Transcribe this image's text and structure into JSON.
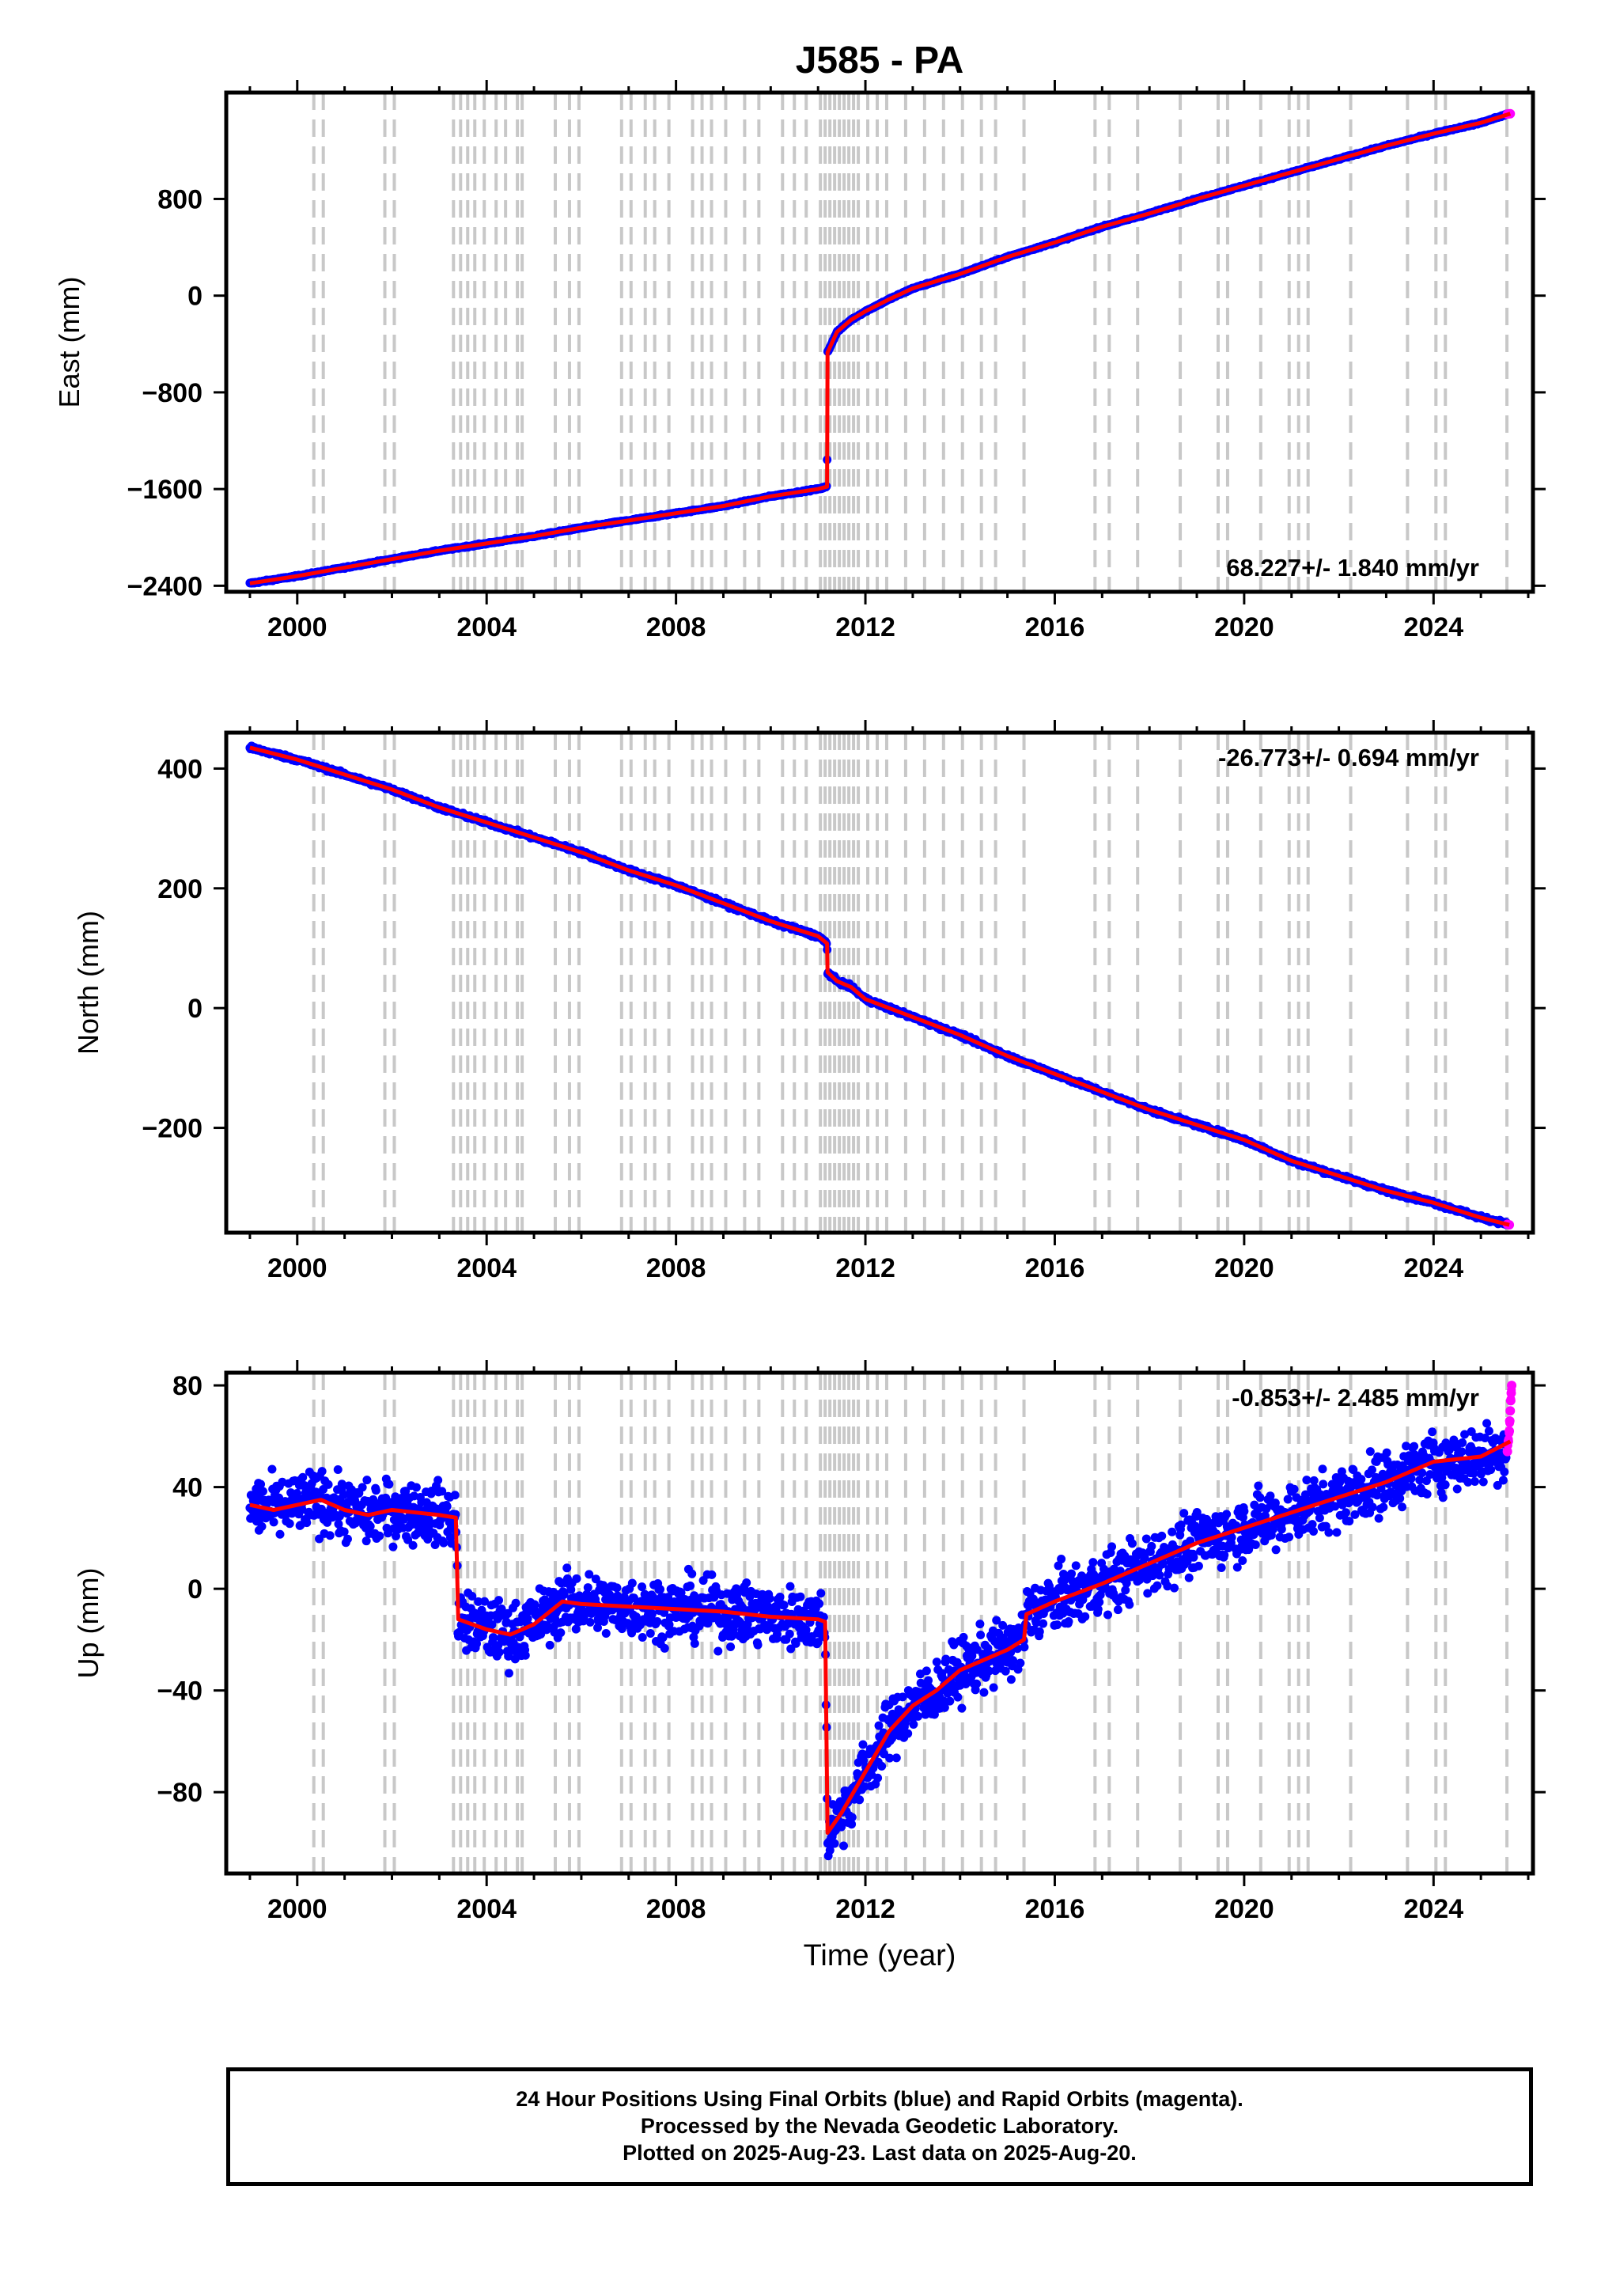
{
  "title": "J585 - PA",
  "footer": {
    "line1": "24 Hour Positions Using Final Orbits (blue) and Rapid Orbits (magenta).",
    "line2": "Processed by the Nevada Geodetic Laboratory.",
    "line3": "Plotted on 2025-Aug-23. Last data on 2025-Aug-20."
  },
  "colors": {
    "final_orbits": "#0000ff",
    "rapid_orbits": "#ff00ff",
    "model": "#ff0000",
    "equipment_change_lines": "#c8c8c8"
  },
  "chart_data": [
    {
      "type": "scatter",
      "title": "J585 - PA",
      "xlabel": "",
      "ylabel": "East (mm)",
      "xlim": [
        1998.5,
        2026.1
      ],
      "ylim": [
        -2450,
        1680
      ],
      "x_ticks": [
        2000,
        2004,
        2008,
        2012,
        2016,
        2020,
        2024
      ],
      "y_ticks": [
        800,
        0,
        -800,
        -1600,
        -2400
      ],
      "y_tick_labels": [
        "800",
        "0",
        "−800",
        "−1600",
        "−2400"
      ],
      "rate_label": "68.227+/- 1.840 mm/yr",
      "rate_label_position": "bottom-right",
      "series": [
        {
          "name": "Final Orbits (blue)",
          "color": "#0000ff",
          "x": [
            1999.0,
            2000.0,
            2001.0,
            2002.0,
            2003.0,
            2004.0,
            2005.0,
            2006.0,
            2007.0,
            2008.0,
            2009.0,
            2010.0,
            2011.0,
            2011.19,
            2011.2,
            2011.4,
            2011.7,
            2012.0,
            2012.5,
            2013.0,
            2014.0,
            2015.0,
            2016.0,
            2017.0,
            2018.0,
            2019.0,
            2020.0,
            2021.0,
            2022.0,
            2023.0,
            2024.0,
            2025.0,
            2025.55
          ],
          "y": [
            -2380,
            -2320,
            -2250,
            -2180,
            -2110,
            -2050,
            -1990,
            -1920,
            -1860,
            -1800,
            -1740,
            -1660,
            -1600,
            -1580,
            -470,
            -300,
            -200,
            -130,
            -30,
            60,
            180,
            320,
            440,
            570,
            680,
            800,
            910,
            1020,
            1130,
            1240,
            1340,
            1430,
            1500
          ]
        },
        {
          "name": "Rapid Orbits (magenta)",
          "color": "#ff00ff",
          "x": [
            2025.56,
            2025.59,
            2025.62
          ],
          "y": [
            1502,
            1504,
            1505
          ]
        }
      ],
      "model_line": {
        "color": "#ff0000",
        "x": [
          1999.0,
          2000.0,
          2001.0,
          2002.0,
          2003.0,
          2004.0,
          2005.0,
          2006.0,
          2007.0,
          2008.0,
          2009.0,
          2010.0,
          2011.0,
          2011.19,
          2011.2,
          2011.4,
          2011.7,
          2012.0,
          2012.5,
          2013.0,
          2014.0,
          2015.0,
          2016.0,
          2017.0,
          2018.0,
          2019.0,
          2020.0,
          2021.0,
          2022.0,
          2023.0,
          2024.0,
          2025.0,
          2025.62
        ],
        "y": [
          -2380,
          -2320,
          -2250,
          -2180,
          -2110,
          -2050,
          -1990,
          -1920,
          -1860,
          -1800,
          -1740,
          -1660,
          -1600,
          -1580,
          -470,
          -300,
          -200,
          -130,
          -30,
          60,
          180,
          320,
          440,
          570,
          680,
          800,
          910,
          1020,
          1130,
          1240,
          1340,
          1430,
          1505
        ]
      }
    },
    {
      "type": "scatter",
      "xlabel": "",
      "ylabel": "North (mm)",
      "xlim": [
        1998.5,
        2026.1
      ],
      "ylim": [
        -375,
        460
      ],
      "x_ticks": [
        2000,
        2004,
        2008,
        2012,
        2016,
        2020,
        2024
      ],
      "y_ticks": [
        400,
        200,
        0,
        -200
      ],
      "y_tick_labels": [
        "400",
        "200",
        "0",
        "−200"
      ],
      "rate_label": "-26.773+/- 0.694 mm/yr",
      "rate_label_position": "top-right",
      "series": [
        {
          "name": "Final Orbits (blue)",
          "color": "#0000ff",
          "x": [
            1999.0,
            2000.0,
            2001.0,
            2002.0,
            2003.0,
            2004.0,
            2005.0,
            2006.0,
            2007.0,
            2008.0,
            2009.0,
            2010.0,
            2011.0,
            2011.19,
            2011.2,
            2011.4,
            2011.7,
            2012.0,
            2013.0,
            2014.0,
            2015.0,
            2016.0,
            2017.0,
            2018.0,
            2019.0,
            2020.0,
            2021.0,
            2022.0,
            2023.0,
            2024.0,
            2025.0,
            2025.55
          ],
          "y": [
            435,
            415,
            390,
            365,
            335,
            310,
            285,
            260,
            230,
            205,
            175,
            145,
            120,
            108,
            60,
            45,
            35,
            15,
            -15,
            -45,
            -80,
            -110,
            -140,
            -170,
            -195,
            -220,
            -255,
            -280,
            -305,
            -325,
            -350,
            -360
          ]
        },
        {
          "name": "Rapid Orbits (magenta)",
          "color": "#ff00ff",
          "x": [
            2025.56,
            2025.6
          ],
          "y": [
            -361,
            -362
          ]
        }
      ],
      "model_line": {
        "color": "#ff0000",
        "x": [
          1999.0,
          2000.0,
          2001.0,
          2002.0,
          2003.0,
          2004.0,
          2005.0,
          2006.0,
          2007.0,
          2008.0,
          2009.0,
          2010.0,
          2011.0,
          2011.19,
          2011.2,
          2011.4,
          2011.7,
          2012.0,
          2013.0,
          2014.0,
          2015.0,
          2016.0,
          2017.0,
          2018.0,
          2019.0,
          2020.0,
          2021.0,
          2022.0,
          2023.0,
          2024.0,
          2025.0,
          2025.6
        ],
        "y": [
          435,
          415,
          390,
          365,
          335,
          310,
          285,
          260,
          230,
          205,
          175,
          145,
          120,
          108,
          60,
          45,
          35,
          15,
          -15,
          -45,
          -80,
          -110,
          -140,
          -170,
          -195,
          -220,
          -255,
          -280,
          -305,
          -325,
          -350,
          -362
        ]
      }
    },
    {
      "type": "scatter",
      "xlabel": "Time (year)",
      "ylabel": "Up (mm)",
      "xlim": [
        1998.5,
        2026.1
      ],
      "ylim": [
        -112,
        85
      ],
      "x_ticks": [
        2000,
        2004,
        2008,
        2012,
        2016,
        2020,
        2024
      ],
      "y_ticks": [
        80,
        40,
        0,
        -40,
        -80
      ],
      "y_tick_labels": [
        "80",
        "40",
        "0",
        "−40",
        "−80"
      ],
      "rate_label": "-0.853+/- 2.485 mm/yr",
      "rate_label_position": "top-right",
      "series": [
        {
          "name": "Final Orbits (blue)",
          "color": "#0000ff",
          "x": [
            1999.0,
            1999.5,
            2000.0,
            2000.5,
            2001.0,
            2001.5,
            2002.0,
            2002.5,
            2003.0,
            2003.35,
            2003.4,
            2004.0,
            2004.5,
            2005.0,
            2005.6,
            2006.0,
            2007.0,
            2008.0,
            2009.0,
            2010.0,
            2011.0,
            2011.15,
            2011.2,
            2011.5,
            2012.0,
            2012.5,
            2013.0,
            2013.5,
            2014.0,
            2014.5,
            2015.0,
            2015.35,
            2015.4,
            2016.0,
            2017.0,
            2018.0,
            2019.0,
            2020.0,
            2021.0,
            2022.0,
            2023.0,
            2024.0,
            2025.0,
            2025.55
          ],
          "y": [
            33,
            31,
            33,
            35,
            31,
            29,
            31,
            30,
            29,
            28,
            -12,
            -16,
            -18,
            -14,
            -5,
            -6,
            -7,
            -8,
            -9,
            -11,
            -12,
            -13,
            -96,
            -88,
            -72,
            -56,
            -46,
            -40,
            -32,
            -28,
            -24,
            -20,
            -10,
            -5,
            2,
            10,
            18,
            24,
            30,
            36,
            42,
            50,
            52,
            56
          ]
        },
        {
          "name": "Rapid Orbits (magenta)",
          "color": "#ff00ff",
          "x": [
            2025.56,
            2025.58,
            2025.6,
            2025.61,
            2025.62,
            2025.63,
            2025.64,
            2025.65
          ],
          "y": [
            54,
            58,
            62,
            66,
            70,
            74,
            77,
            80
          ]
        }
      ],
      "model_line": {
        "color": "#ff0000",
        "x": [
          1999.0,
          1999.5,
          2000.0,
          2000.5,
          2001.0,
          2001.5,
          2002.0,
          2002.5,
          2003.0,
          2003.35,
          2003.4,
          2004.0,
          2004.5,
          2005.0,
          2005.6,
          2006.0,
          2007.0,
          2008.0,
          2009.0,
          2010.0,
          2011.0,
          2011.15,
          2011.2,
          2011.5,
          2012.0,
          2012.5,
          2013.0,
          2013.5,
          2014.0,
          2014.5,
          2015.0,
          2015.35,
          2015.4,
          2016.0,
          2017.0,
          2018.0,
          2019.0,
          2020.0,
          2021.0,
          2022.0,
          2023.0,
          2024.0,
          2025.0,
          2025.62
        ],
        "y": [
          33,
          31,
          33,
          35,
          31,
          29,
          31,
          30,
          29,
          28,
          -12,
          -16,
          -18,
          -14,
          -5,
          -6,
          -7,
          -8,
          -9,
          -11,
          -12,
          -13,
          -96,
          -88,
          -72,
          -56,
          -46,
          -40,
          -32,
          -28,
          -24,
          -20,
          -10,
          -5,
          2,
          10,
          18,
          24,
          30,
          36,
          42,
          50,
          52,
          58
        ]
      }
    }
  ],
  "equipment_change_years": [
    2000.35,
    2000.55,
    2001.85,
    2002.05,
    2003.3,
    2003.45,
    2003.6,
    2003.75,
    2003.95,
    2004.2,
    2004.4,
    2004.65,
    2004.75,
    2005.45,
    2005.75,
    2005.95,
    2006.85,
    2007.05,
    2007.35,
    2007.55,
    2007.85,
    2008.35,
    2008.55,
    2008.75,
    2009.05,
    2009.45,
    2009.75,
    2010.25,
    2010.5,
    2010.75,
    2011.05,
    2011.15,
    2011.25,
    2011.35,
    2011.45,
    2011.55,
    2011.65,
    2011.75,
    2011.85,
    2012.05,
    2012.25,
    2012.45,
    2012.85,
    2013.25,
    2013.65,
    2014.05,
    2014.45,
    2014.75,
    2015.35,
    2016.85,
    2017.15,
    2017.75,
    2018.65,
    2019.45,
    2019.65,
    2020.35,
    2020.95,
    2021.15,
    2021.35,
    2022.25,
    2023.45,
    2024.05,
    2024.25,
    2025.55
  ]
}
